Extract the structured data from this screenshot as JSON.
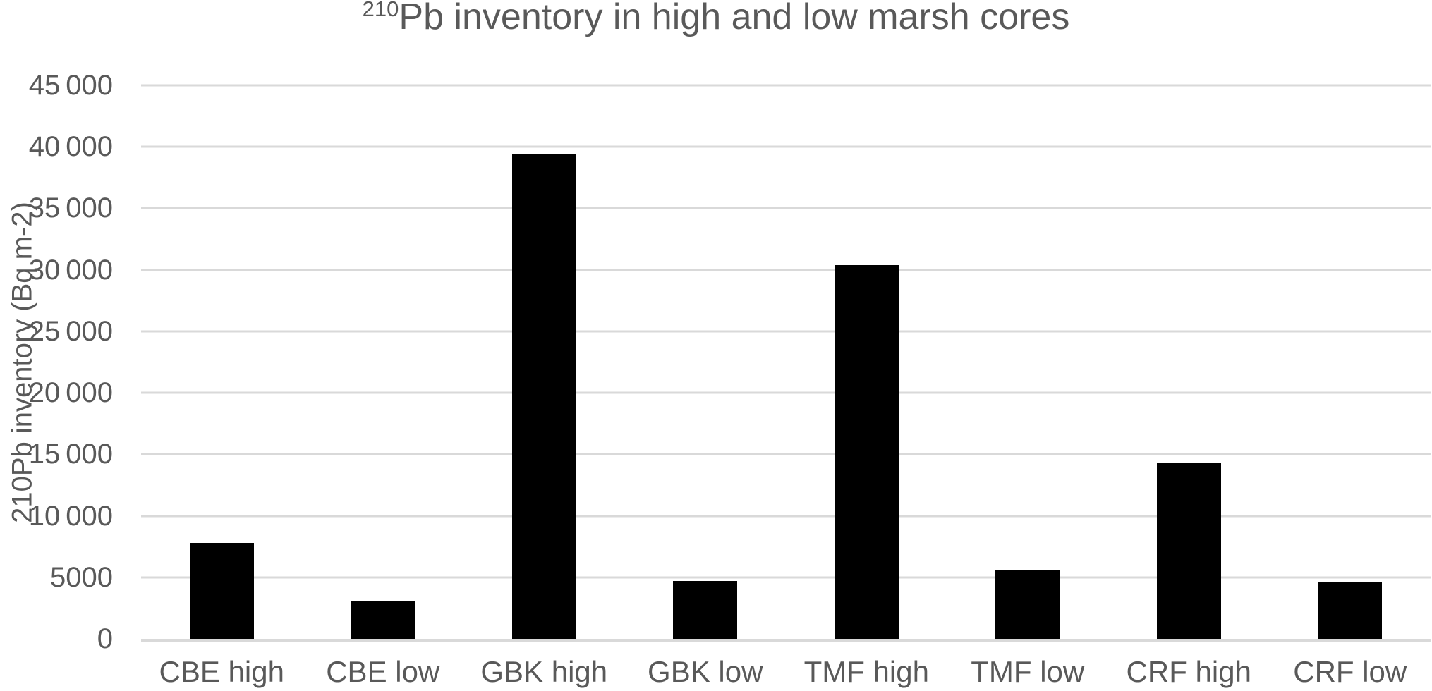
{
  "chart_data": {
    "type": "bar",
    "title": "²¹⁰Pb inventory in high and low marsh cores",
    "title_superscript": "210",
    "title_main": "Pb inventory in high and low marsh cores",
    "ylabel": "210Pb inventory (Bq m-2)",
    "xlabel": "",
    "categories": [
      "CBE high",
      "CBE low",
      "GBK high",
      "GBK low",
      "TMF high",
      "TMF low",
      "CRF high",
      "CRF low"
    ],
    "values": [
      7800,
      3100,
      39400,
      4700,
      30400,
      5600,
      14300,
      4600
    ],
    "ylim": [
      0,
      45000
    ],
    "ytick_interval": 5000,
    "ytick_labels": [
      "0",
      "5000",
      "10 000",
      "15 000",
      "20 000",
      "25 000",
      "30 000",
      "35 000",
      "40 000",
      "45 000"
    ],
    "grid": true,
    "legend": false,
    "bar_color": "#000000",
    "gridline_color": "#d9d9d9",
    "axis_line_color": "#d9d9d9",
    "text_color": "#595959",
    "background": "#ffffff"
  }
}
